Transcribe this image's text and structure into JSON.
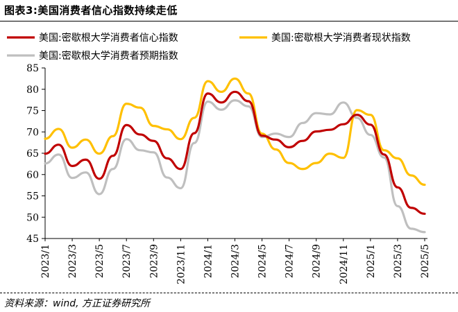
{
  "title": "图表3:美国消费者信心指数持续走低",
  "source": "资料来源：wind, 方正证券研究所",
  "colors": {
    "confidence": "#C00000",
    "current": "#FFC000",
    "expectations": "#BFBFBF"
  },
  "chart_data": {
    "type": "line",
    "title": "",
    "xlabel": "",
    "ylabel": "",
    "ylim": [
      45,
      85
    ],
    "yticks": [
      45,
      50,
      55,
      60,
      65,
      70,
      75,
      80,
      85
    ],
    "grid": false,
    "legend": "top",
    "x": [
      "2023/1",
      "2023/2",
      "2023/3",
      "2023/4",
      "2023/5",
      "2023/6",
      "2023/7",
      "2023/8",
      "2023/9",
      "2023/10",
      "2023/11",
      "2023/12",
      "2024/1",
      "2024/2",
      "2024/3",
      "2024/4",
      "2024/5",
      "2024/6",
      "2024/7",
      "2024/8",
      "2024/9",
      "2024/10",
      "2024/11",
      "2024/12",
      "2025/1",
      "2025/2",
      "2025/3",
      "2025/4",
      "2025/5"
    ],
    "xticks": [
      "2023/1",
      "2023/3",
      "2023/5",
      "2023/7",
      "2023/9",
      "2023/11",
      "2024/1",
      "2024/3",
      "2024/5",
      "2024/7",
      "2024/9",
      "2024/11",
      "2025/1",
      "2025/3",
      "2025/5"
    ],
    "series": [
      {
        "name": "美国:密歇根大学消费者信心指数",
        "color_key": "confidence",
        "values": [
          64.9,
          67.0,
          62.0,
          63.5,
          59.0,
          64.4,
          71.6,
          69.4,
          67.9,
          63.8,
          61.3,
          69.7,
          79.0,
          76.9,
          79.4,
          77.2,
          69.1,
          68.2,
          66.4,
          67.9,
          70.1,
          70.5,
          71.8,
          74.0,
          71.7,
          64.7,
          57.0,
          52.2,
          50.8
        ]
      },
      {
        "name": "美国:密歇根大学消费者现状指数",
        "color_key": "current",
        "values": [
          68.4,
          70.7,
          66.3,
          68.2,
          64.9,
          69.0,
          76.6,
          75.7,
          71.4,
          70.6,
          68.3,
          73.3,
          81.9,
          79.4,
          82.5,
          79.0,
          69.6,
          65.9,
          62.7,
          61.3,
          62.7,
          64.9,
          63.9,
          75.1,
          74.0,
          65.7,
          63.8,
          59.8,
          57.6
        ]
      },
      {
        "name": "美国:密歇根大学消费者预期指数",
        "color_key": "expectations",
        "values": [
          62.6,
          64.7,
          59.2,
          60.5,
          55.4,
          61.3,
          68.3,
          65.7,
          65.2,
          59.3,
          56.8,
          67.4,
          77.1,
          75.2,
          77.4,
          76.0,
          68.8,
          69.6,
          68.8,
          72.1,
          74.4,
          74.1,
          76.9,
          73.3,
          69.3,
          64.0,
          52.6,
          47.3,
          46.5
        ]
      }
    ]
  }
}
